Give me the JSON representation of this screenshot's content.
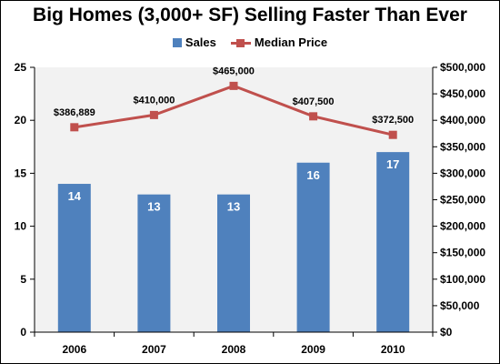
{
  "chart_data": {
    "type": "bar",
    "title": "Big Homes (3,000+ SF) Selling Faster Than Ever",
    "categories": [
      "2006",
      "2007",
      "2008",
      "2009",
      "2010"
    ],
    "series": [
      {
        "name": "Sales",
        "type": "bar",
        "axis": "left",
        "color": "#4F81BD",
        "values": [
          14,
          13,
          13,
          16,
          17
        ],
        "data_labels": [
          "14",
          "13",
          "13",
          "16",
          "17"
        ]
      },
      {
        "name": "Median Price",
        "type": "line",
        "axis": "right",
        "color": "#C0504D",
        "values": [
          386889,
          410000,
          465000,
          407500,
          372500
        ],
        "data_labels": [
          "$386,889",
          "$410,000",
          "$465,000",
          "$407,500",
          "$372,500"
        ]
      }
    ],
    "y_left": {
      "lim": [
        0,
        25
      ],
      "ticks": [
        0,
        5,
        10,
        15,
        20,
        25
      ],
      "tick_labels": [
        "0",
        "5",
        "10",
        "15",
        "20",
        "25"
      ]
    },
    "y_right": {
      "lim": [
        0,
        500000
      ],
      "ticks": [
        0,
        50000,
        100000,
        150000,
        200000,
        250000,
        300000,
        350000,
        400000,
        450000,
        500000
      ],
      "tick_labels": [
        "$0",
        "$50,000",
        "$100,000",
        "$150,000",
        "$200,000",
        "$250,000",
        "$300,000",
        "$350,000",
        "$400,000",
        "$450,000",
        "$500,000"
      ]
    },
    "xlabel": "",
    "ylabel": "",
    "grid": false,
    "plot_background": "#F2F2F2",
    "legend_position": "top"
  }
}
